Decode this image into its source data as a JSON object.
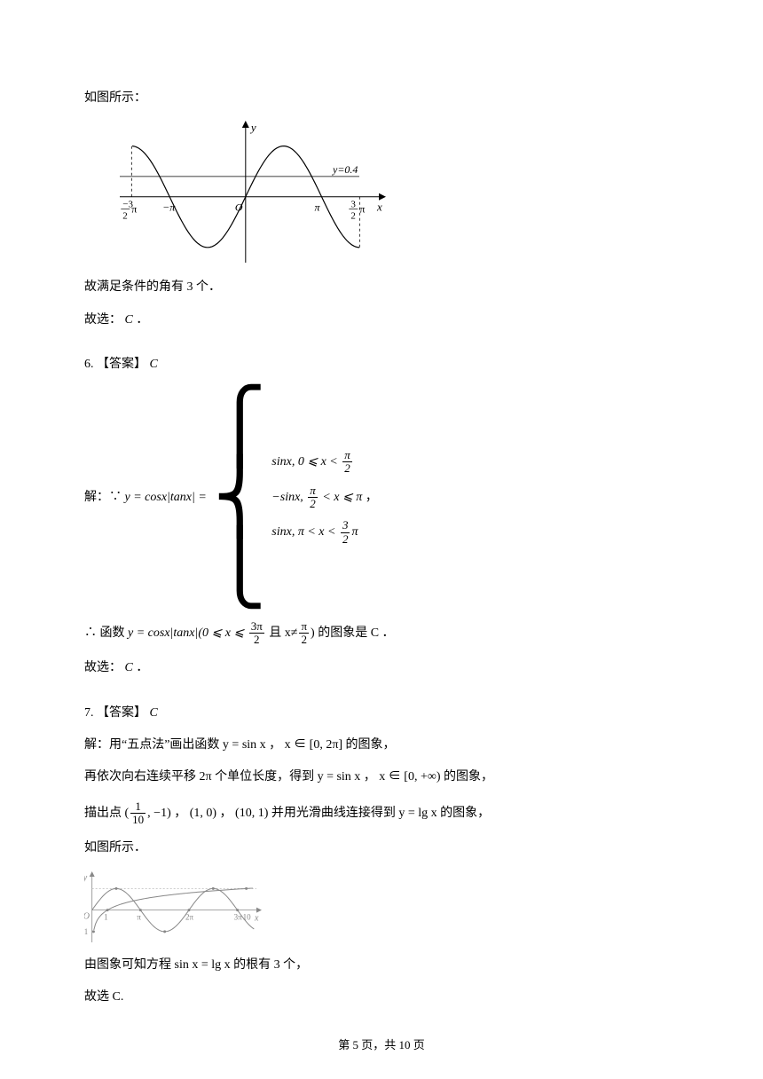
{
  "q5": {
    "intro": "如图所示：",
    "graph": {
      "type": "line",
      "x_range": [
        -5.2,
        5.8
      ],
      "y_range": [
        -1.3,
        1.5
      ],
      "axis_color": "#000000",
      "curve_color": "#000000",
      "line_width": 1.2,
      "h_line_y": 0.4,
      "h_line_label": "y=0.4",
      "h_line_label_fontsize": 12,
      "x_label": "x",
      "y_label": "y",
      "axis_label_fontsize": 13,
      "ticks": [
        {
          "x": -4.712,
          "label_top": "3",
          "label_mid": "2",
          "label_suffix": "π",
          "neg": true
        },
        {
          "x": -3.1416,
          "label": "−π"
        },
        {
          "x": 0,
          "label": "O"
        },
        {
          "x": 3.1416,
          "label": "π"
        },
        {
          "x": 4.712,
          "label_top": "3",
          "label_mid": "2",
          "label_suffix": "π",
          "neg": false
        }
      ],
      "dash_x": [
        -4.712,
        4.712
      ],
      "background_color": "#ffffff"
    },
    "conclusion1": "故满足条件的角有 3 个．",
    "conclusion2_prefix": "故选：",
    "conclusion2_answer": "C",
    "conclusion2_suffix": "．"
  },
  "q6": {
    "header_num": "6.",
    "header_label": "【答案】",
    "header_answer": "C",
    "solution_prefix": "解：∵ ",
    "equation_lhs": "y = cosx|tanx| = ",
    "cases": [
      {
        "func": "sinx, ",
        "cond_pre": "0 ⩽ x < ",
        "frac_num": "π",
        "frac_den": "2",
        "cond_post": ""
      },
      {
        "func": "−sinx, ",
        "cond_pre": "",
        "frac_num": "π",
        "frac_den": "2",
        "cond_mid": " < x ⩽ π",
        "cond_post": ""
      },
      {
        "func": "sinx, ",
        "cond_pre": "π < x < ",
        "frac_num": "3",
        "frac_den": "2",
        "cond_post": "π"
      }
    ],
    "cases_suffix": "，",
    "line2_prefix": "∴ 函数 ",
    "line2_eq": "y = cosx|tanx|(0 ⩽ x ⩽ ",
    "line2_frac1_num": "3π",
    "line2_frac1_den": "2",
    "line2_mid": " 且 x≠",
    "line2_frac2_num": "π",
    "line2_frac2_den": "2",
    "line2_suffix": ") 的图象是 C ．",
    "conclusion_prefix": "故选：",
    "conclusion_answer": "C",
    "conclusion_suffix": "．"
  },
  "q7": {
    "header_num": "7.",
    "header_label": "【答案】",
    "header_answer": "C",
    "line1": "解：用“五点法”画出函数 y = sin x ， x ∈ [0, 2π] 的图象，",
    "line2": "再依次向右连续平移 2π 个单位长度，得到 y = sin x ， x ∈ [0, +∞) 的图象，",
    "line3_prefix": "描出点 (",
    "line3_frac_num": "1",
    "line3_frac_den": "10",
    "line3_mid": ", −1) ， (1, 0) ， (10, 1) 并用光滑曲线连接得到 y = lg x 的图象，",
    "line4": "如图所示．",
    "graph": {
      "type": "line",
      "x_range": [
        -0.5,
        11
      ],
      "y_range": [
        -1.5,
        1.8
      ],
      "sin_color": "#888888",
      "lg_color": "#888888",
      "axis_color": "#888888",
      "dash_color": "#bbbbbb",
      "line_width": 1,
      "x_label": "x",
      "y_label": "y",
      "xticks": [
        {
          "x": 1,
          "label": "1"
        },
        {
          "x": 3.1416,
          "label": "π"
        },
        {
          "x": 6.2832,
          "label": "2π"
        },
        {
          "x": 9.4248,
          "label": "3π"
        },
        {
          "x": 10,
          "label": "10"
        }
      ],
      "yticks": [
        {
          "y": 1,
          "label": "1"
        },
        {
          "y": -1,
          "label": "−1"
        }
      ],
      "dash_y": 1,
      "background_color": "#ffffff"
    },
    "line5": "由图象可知方程 sin x = lg x 的根有 3 个，",
    "line6": "故选 C."
  },
  "footer": {
    "prefix": "第 ",
    "page": "5",
    "mid": " 页，共 ",
    "total": "10",
    "suffix": " 页"
  }
}
